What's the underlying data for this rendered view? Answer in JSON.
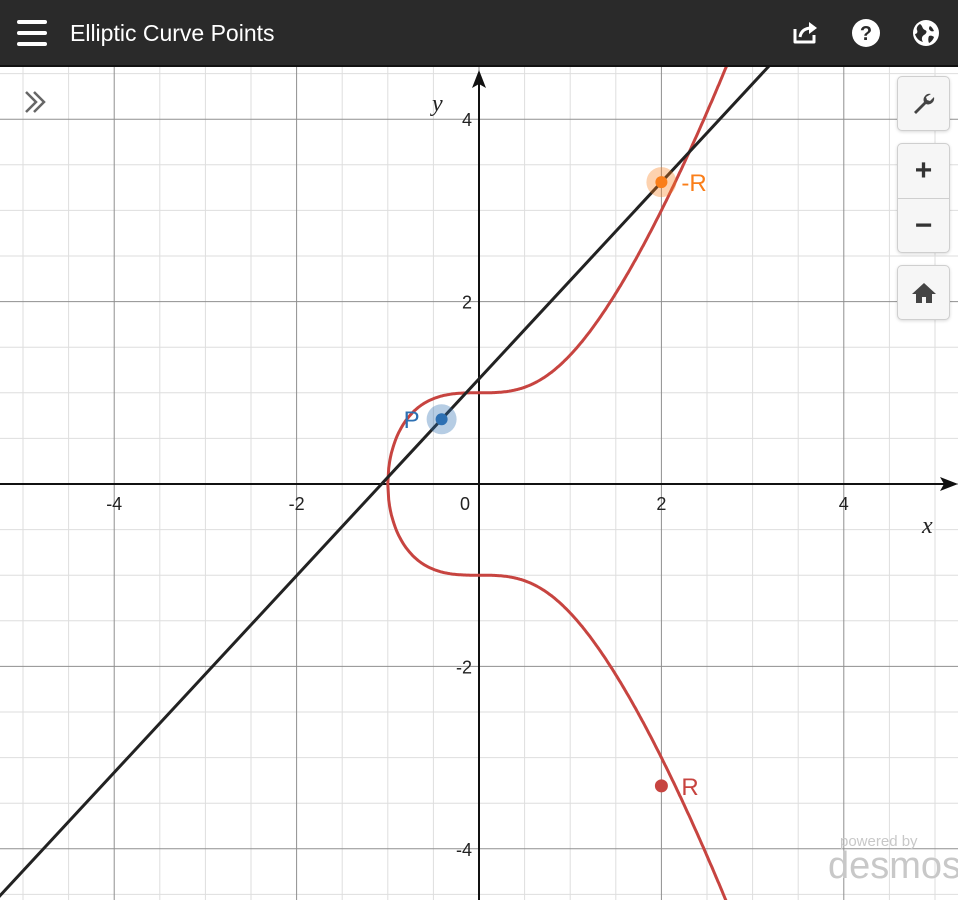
{
  "header": {
    "title": "Elliptic Curve Points",
    "icons": [
      "hamburger-menu-icon",
      "share-icon",
      "help-icon",
      "language-globe-icon"
    ]
  },
  "graph": {
    "x_axis_label": "x",
    "y_axis_label": "y",
    "x_ticks": [
      {
        "value": -4,
        "label": "-4"
      },
      {
        "value": -2,
        "label": "-2"
      },
      {
        "value": 0,
        "label": "0"
      },
      {
        "value": 2,
        "label": "2"
      },
      {
        "value": 4,
        "label": "4"
      }
    ],
    "y_ticks": [
      {
        "value": 4,
        "label": "4"
      },
      {
        "value": 2,
        "label": "2"
      },
      {
        "value": -2,
        "label": "-2"
      },
      {
        "value": -4,
        "label": "-4"
      }
    ],
    "x_range": [
      -5.25,
      5.25
    ],
    "y_range": [
      -4.6,
      4.6
    ],
    "curve_color": "#c74440",
    "line_color": "#222222",
    "points": [
      {
        "label": "P",
        "x": -0.41,
        "y": 0.71,
        "color": "#2d70b3"
      },
      {
        "label": "-R",
        "x": 2.0,
        "y": 3.31,
        "color": "#fa7e19"
      },
      {
        "label": "R",
        "x": 2.0,
        "y": -3.31,
        "color": "#c74440"
      }
    ]
  },
  "controls": {
    "icons": [
      "wrench-icon",
      "zoom-in-icon",
      "zoom-out-icon",
      "home-icon"
    ],
    "zoom_in": "+",
    "zoom_out": "−"
  },
  "watermark": {
    "line1": "powered by",
    "line2": "desmos"
  }
}
